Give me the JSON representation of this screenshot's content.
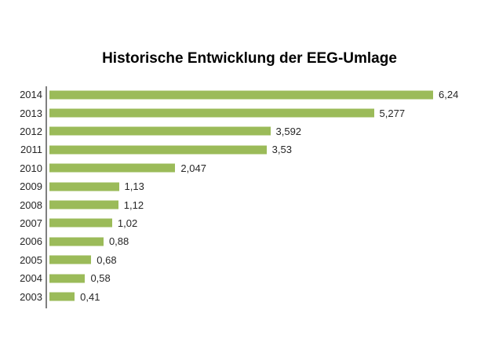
{
  "title": "Historische Entwicklung der EEG-Umlage",
  "colors": {
    "bar": "#9BBB59",
    "axis": "#808080",
    "text": "#262626",
    "background": "#FFFFFF"
  },
  "chart_data": {
    "type": "bar",
    "orientation": "horizontal",
    "title": "Historische Entwicklung der EEG-Umlage",
    "xlabel": "",
    "ylabel": "",
    "categories": [
      "2014",
      "2013",
      "2012",
      "2011",
      "2010",
      "2009",
      "2008",
      "2007",
      "2006",
      "2005",
      "2004",
      "2003"
    ],
    "values": [
      6.24,
      5.277,
      3.592,
      3.53,
      2.047,
      1.13,
      1.12,
      1.02,
      0.88,
      0.68,
      0.58,
      0.41
    ],
    "value_labels": [
      "6,24",
      "5,277",
      "3,592",
      "3,53",
      "2,047",
      "1,13",
      "1,12",
      "1,02",
      "0,88",
      "0,68",
      "0,58",
      "0,41"
    ],
    "xlim": [
      0,
      7
    ],
    "grid": false,
    "legend": null,
    "data_labels": "outside-end"
  }
}
